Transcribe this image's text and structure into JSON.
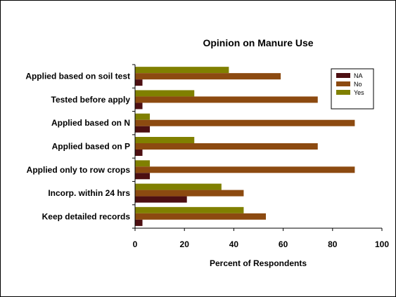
{
  "chart_data": {
    "type": "bar",
    "orientation": "horizontal",
    "title": "Opinion on Manure Use",
    "xlabel": "Percent of Respondents",
    "ylabel": "",
    "xlim": [
      0,
      100
    ],
    "xticks": [
      "0",
      "20",
      "40",
      "60",
      "80",
      "100"
    ],
    "grid": false,
    "legend_position": "top-right",
    "categories": [
      "Applied based on soil test",
      "Tested before apply",
      "Applied based on N",
      "Applied based on P",
      "Applied only to row crops",
      "Incorp. within 24 hrs",
      "Keep detailed records"
    ],
    "series": [
      {
        "name": "NA",
        "color": "#4d0f12",
        "values": [
          3,
          3,
          6,
          3,
          6,
          21,
          3
        ]
      },
      {
        "name": "No",
        "color": "#8c4a10",
        "values": [
          59,
          74,
          89,
          74,
          89,
          44,
          53
        ]
      },
      {
        "name": "Yes",
        "color": "#808000",
        "values": [
          38,
          24,
          6,
          24,
          6,
          35,
          44
        ]
      }
    ]
  }
}
